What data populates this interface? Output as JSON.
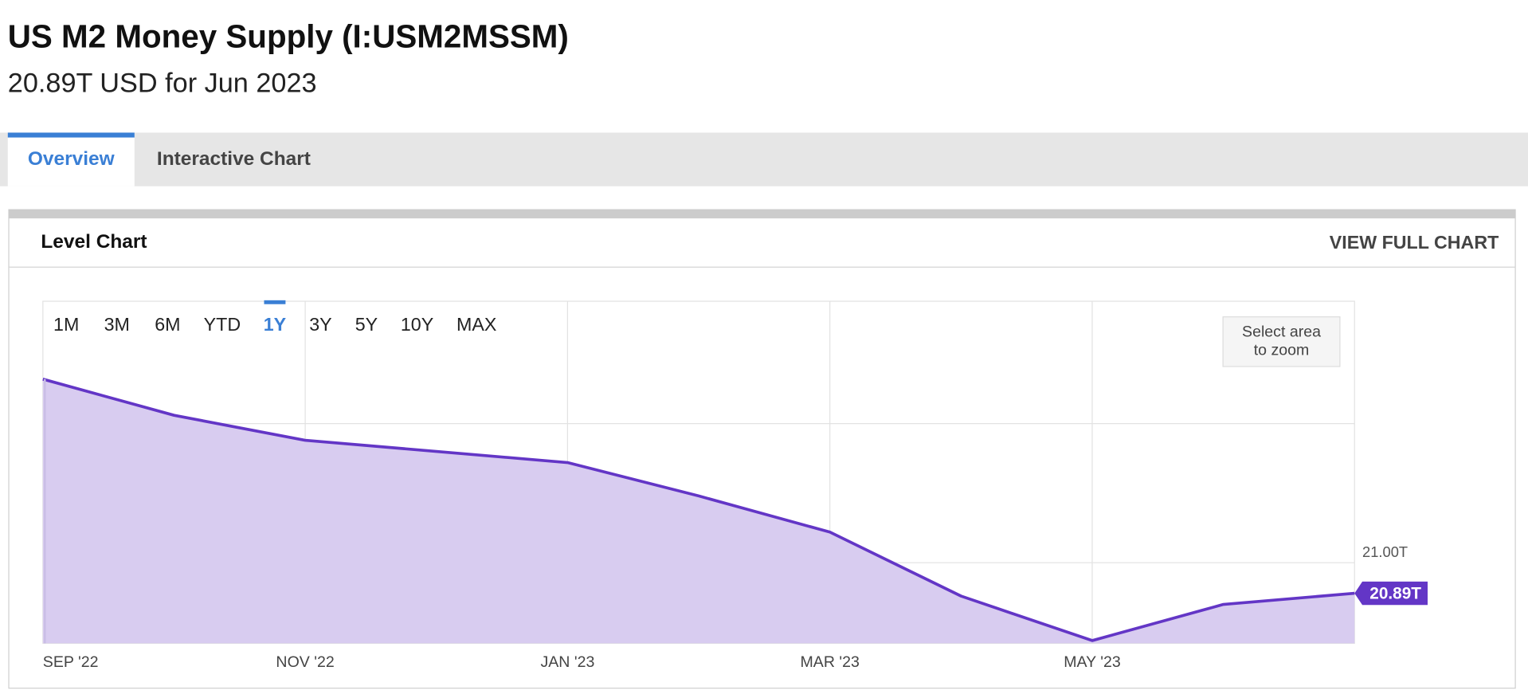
{
  "header": {
    "title": "US M2 Money Supply (I:USM2MSSM)",
    "subtitle": "20.89T USD for Jun 2023"
  },
  "tabs": {
    "items": [
      "Overview",
      "Interactive Chart"
    ],
    "active_index": 0
  },
  "card": {
    "title": "Level Chart",
    "action": "VIEW FULL CHART"
  },
  "ranges": {
    "items": [
      "1M",
      "3M",
      "6M",
      "YTD",
      "1Y",
      "3Y",
      "5Y",
      "10Y",
      "MAX"
    ],
    "active_index": 4
  },
  "zoom_hint": [
    "Select area",
    "to zoom"
  ],
  "chart_data": {
    "type": "area",
    "categories": [
      "SEP '22",
      null,
      "NOV '22",
      null,
      "JAN '23",
      null,
      "MAR '23",
      null,
      "MAY '23",
      null,
      null
    ],
    "values": [
      21.66,
      21.53,
      21.44,
      21.4,
      21.36,
      21.24,
      21.11,
      20.88,
      20.72,
      20.85,
      20.89
    ],
    "value_labels": [
      null,
      null,
      null,
      null,
      null,
      null,
      null,
      null,
      null,
      null,
      "20.89T"
    ],
    "color": "#6336c6",
    "fill": "#d8ccf0",
    "ylim": [
      20.71,
      21.94
    ],
    "yticks": [
      {
        "value": 21,
        "label": "21.00T"
      },
      {
        "value": 21.5,
        "label": null
      }
    ],
    "grid": true
  }
}
